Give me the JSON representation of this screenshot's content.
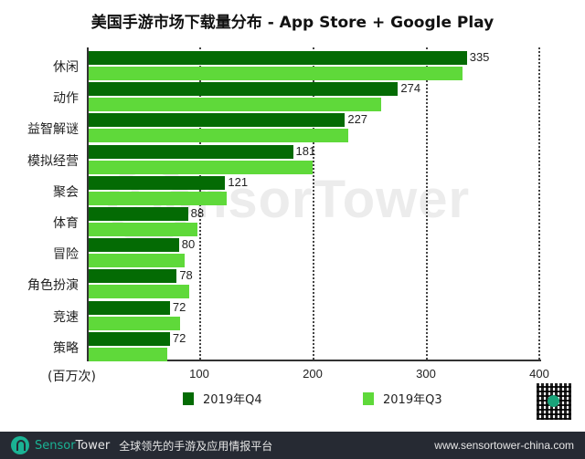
{
  "title": "美国手游市场下载量分布 - App Store + Google Play",
  "watermark": "SensorTower",
  "chart_data": {
    "type": "bar",
    "orientation": "horizontal",
    "title": "美国手游市场下载量分布 - App Store + Google Play",
    "xlabel": "(百万次)",
    "ylabel": "",
    "xlim": [
      0,
      400
    ],
    "xticks": [
      100,
      200,
      300,
      400
    ],
    "grid": "vertical dotted",
    "legend_position": "bottom",
    "categories": [
      "休闲",
      "动作",
      "益智解谜",
      "模拟经营",
      "聚会",
      "体育",
      "冒险",
      "角色扮演",
      "竞速",
      "策略"
    ],
    "series": [
      {
        "name": "2019年Q4",
        "color": "#046b04",
        "values": [
          335,
          274,
          227,
          181,
          121,
          88,
          80,
          78,
          72,
          72
        ],
        "labeled": true
      },
      {
        "name": "2019年Q3",
        "color": "#5fd93a",
        "values": [
          331,
          259,
          230,
          198,
          122,
          96,
          85,
          89,
          81,
          70
        ],
        "labeled": false
      }
    ]
  },
  "axis": {
    "unit": "(百万次)",
    "ticks": [
      "100",
      "200",
      "300",
      "400"
    ]
  },
  "legend": {
    "q4": "2019年Q4",
    "q3": "2019年Q3"
  },
  "footer": {
    "brand_part1": "Sensor",
    "brand_part2": "Tower",
    "tagline": "全球领先的手游及应用情报平台",
    "url": "www.sensortower-china.com"
  }
}
